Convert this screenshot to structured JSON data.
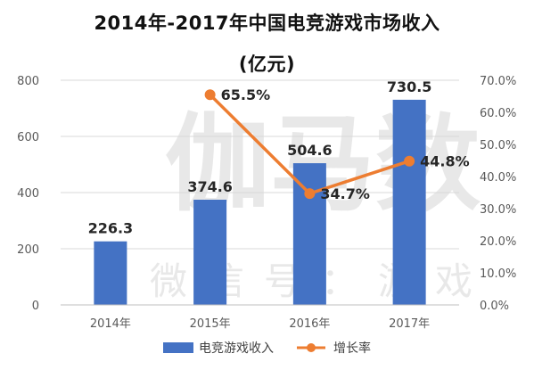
{
  "chart_data": {
    "type": "bar",
    "title": "2014年-2017年中国电竞游戏市场收入",
    "subtitle": "(亿元)",
    "categories": [
      "2014年",
      "2015年",
      "2016年",
      "2017年"
    ],
    "series": [
      {
        "name": "电竞游戏收入",
        "type": "bar",
        "axis": "left",
        "color": "#4472c4",
        "values": [
          226.3,
          374.6,
          504.6,
          730.5
        ],
        "labels": [
          "226.3",
          "374.6",
          "504.6",
          "730.5"
        ]
      },
      {
        "name": "增长率",
        "type": "line",
        "axis": "right",
        "color": "#ed7d31",
        "values": [
          null,
          65.5,
          34.7,
          44.8
        ],
        "labels": [
          "",
          "65.5%",
          "34.7%",
          "44.8%"
        ]
      }
    ],
    "y_left": {
      "ylim": [
        0,
        800
      ],
      "ticks": [
        "0",
        "200",
        "400",
        "600",
        "800"
      ]
    },
    "y_right": {
      "ylim": [
        0,
        70
      ],
      "ticks": [
        "0.0%",
        "10.0%",
        "20.0%",
        "30.0%",
        "40.0%",
        "50.0%",
        "60.0%",
        "70.0%"
      ]
    },
    "grid": true,
    "legend_position": "bottom",
    "watermark": "伽马数据 微信号：游戏"
  }
}
